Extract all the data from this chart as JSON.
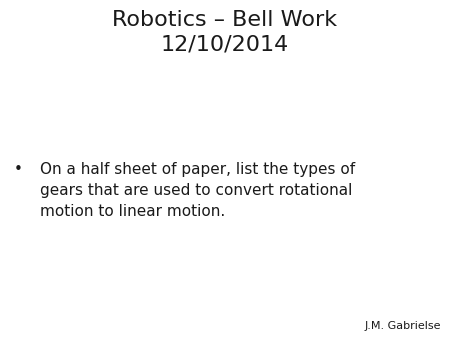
{
  "title_line1": "Robotics – Bell Work",
  "title_line2": "12/10/2014",
  "bullet_text_lines": [
    "On a half sheet of paper, list the types of",
    "gears that are used to convert rotational",
    "motion to linear motion."
  ],
  "attribution": "J.M. Gabrielse",
  "background_color": "#ffffff",
  "text_color": "#1a1a1a",
  "title_fontsize": 16,
  "body_fontsize": 11,
  "attr_fontsize": 8,
  "bullet_char": "•"
}
